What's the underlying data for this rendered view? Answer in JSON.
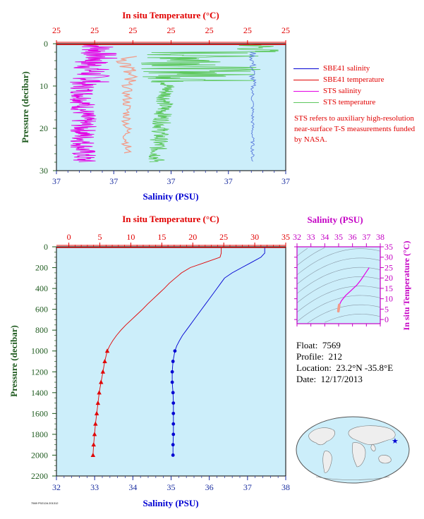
{
  "colors": {
    "plot_bg": "#cceefa",
    "red": "#e10000",
    "blue": "#0000d2",
    "magenta": "#e400e4",
    "green": "#5ec85e",
    "salmon": "#f29c8a",
    "thinblue": "#5a7bdc",
    "darkgreen": "#1e5a1e",
    "navy": "#1a2ea0"
  },
  "chart_data": [
    {
      "type": "line",
      "title_top_axis": "In situ Temperature (°C)",
      "top_ticks": [
        "25",
        "25",
        "25",
        "25",
        "25",
        "25",
        "25"
      ],
      "xlabel": "Salinity (PSU)",
      "bottom_ticks": [
        "37",
        "37",
        "37",
        "37",
        "37"
      ],
      "ylabel": "Pressure (decibar)",
      "ylim": [
        0,
        30
      ],
      "y_ticks": [
        "0",
        "10",
        "20",
        "30"
      ],
      "series": [
        {
          "name": "SBE41 salinity"
        },
        {
          "name": "SBE41 temperature"
        },
        {
          "name": "STS salinity"
        },
        {
          "name": "STS temperature"
        }
      ],
      "legend_position": "right",
      "note": "STS refers to auxiliary high-resolution near-surface T-S measurements funded by NASA."
    },
    {
      "type": "line",
      "title_top_axis": "In situ Temperature (°C)",
      "temp_ticks": [
        "0",
        "5",
        "10",
        "15",
        "20",
        "25",
        "30",
        "35"
      ],
      "temp_lim": [
        -2,
        35
      ],
      "xlabel": "Salinity (PSU)",
      "sal_ticks": [
        "32",
        "33",
        "34",
        "35",
        "36",
        "37",
        "38"
      ],
      "sal_lim": [
        32,
        38
      ],
      "ylabel": "Pressure (decibar)",
      "y_ticks": [
        "0",
        "200",
        "400",
        "600",
        "800",
        "1000",
        "1200",
        "1400",
        "1600",
        "1800",
        "2000",
        "2200"
      ],
      "ylim": [
        0,
        2200
      ],
      "temperature_series": {
        "pressure": [
          0,
          60,
          100,
          150,
          200,
          250,
          300,
          350,
          400,
          450,
          500,
          550,
          600,
          650,
          700,
          750,
          800,
          850,
          900,
          950,
          1000
        ],
        "values": [
          24.6,
          24.6,
          24.4,
          22.0,
          19.6,
          18.2,
          17.2,
          16.2,
          15.4,
          14.5,
          13.6,
          12.7,
          11.9,
          11.0,
          10.1,
          9.2,
          8.4,
          7.7,
          7.1,
          6.6,
          6.2
        ]
      },
      "temperature_bottle": {
        "pressure": [
          1000,
          1100,
          1200,
          1300,
          1400,
          1500,
          1600,
          1700,
          1800,
          1900,
          2000
        ],
        "values": [
          6.2,
          5.8,
          5.5,
          5.2,
          4.9,
          4.7,
          4.5,
          4.3,
          4.15,
          4.0,
          3.9
        ]
      },
      "salinity_series": {
        "pressure": [
          0,
          60,
          100,
          150,
          200,
          250,
          300,
          350,
          400,
          450,
          500,
          550,
          600,
          650,
          700,
          750,
          800,
          850,
          900,
          950,
          1000
        ],
        "values": [
          37.45,
          37.45,
          37.35,
          37.1,
          36.85,
          36.6,
          36.4,
          36.3,
          36.2,
          36.1,
          36.0,
          35.9,
          35.8,
          35.7,
          35.6,
          35.5,
          35.4,
          35.3,
          35.22,
          35.15,
          35.1
        ]
      },
      "salinity_bottle": {
        "pressure": [
          1000,
          1100,
          1200,
          1300,
          1400,
          1500,
          1600,
          1700,
          1800,
          1900,
          2000
        ],
        "values": [
          35.1,
          35.05,
          35.03,
          35.03,
          35.05,
          35.06,
          35.06,
          35.06,
          35.06,
          35.05,
          35.05
        ]
      }
    },
    {
      "type": "scatter",
      "title_top_axis": "Salinity (PSU)",
      "sal_ticks": [
        "32",
        "33",
        "34",
        "35",
        "36",
        "37",
        "38"
      ],
      "sal_lim": [
        32,
        38
      ],
      "ylabel": "In situ Temperature (°C)",
      "t_ticks": [
        "0",
        "5",
        "10",
        "15",
        "20",
        "25",
        "30",
        "35"
      ],
      "t_lim": [
        -2,
        35
      ],
      "ts_curve": {
        "salinity": [
          34.95,
          35.0,
          35.05,
          35.2,
          35.5,
          35.9,
          36.3,
          36.6,
          36.9,
          37.2
        ],
        "temperature": [
          4.0,
          6.0,
          7.0,
          9.0,
          11.5,
          14.0,
          16.5,
          19.0,
          22.0,
          25.0
        ]
      }
    }
  ],
  "info": {
    "float_label": "Float:",
    "float_value": "7569",
    "profile_label": "Profile:",
    "profile_value": "212",
    "location_label": "Location:",
    "location_value": "23.2°N  -35.8°E",
    "date_label": "Date:",
    "date_value": "12/17/2013"
  },
  "footnote": "7569 P0212A 201312",
  "icons": {
    "float_marker": "star-icon",
    "world_map": "globe-map-icon"
  }
}
